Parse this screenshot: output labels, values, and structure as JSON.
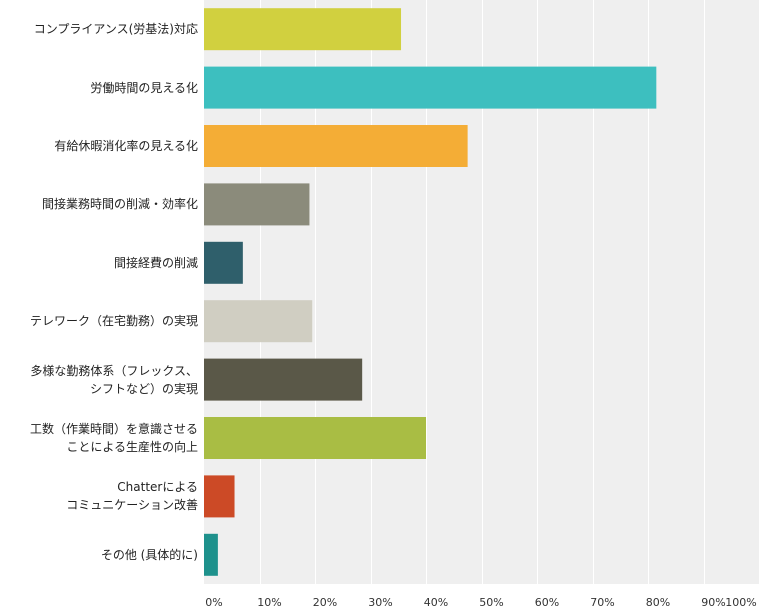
{
  "chart_data": {
    "type": "bar",
    "orientation": "horizontal",
    "categories": [
      [
        "コンプライアンス(労基法)対応"
      ],
      [
        "労働時間の見える化"
      ],
      [
        "有給休暇消化率の見える化"
      ],
      [
        "間接業務時間の削減・効率化"
      ],
      [
        "間接経費の削減"
      ],
      [
        "テレワーク（在宅勤務）の実現"
      ],
      [
        "多様な勤務体系（フレックス、",
        "シフトなど）の実現"
      ],
      [
        "工数（作業時間）を意識させる",
        "ことによる生産性の向上"
      ],
      [
        "Chatterによる",
        "コミュニケーション改善"
      ],
      [
        "その他 (具体的に)"
      ]
    ],
    "values": [
      35.5,
      81.5,
      47.5,
      19,
      7,
      19.5,
      28.5,
      40,
      5.5,
      2.5
    ],
    "colors": [
      "#d1d03f",
      "#3dbfbf",
      "#f4ad36",
      "#8b8b7b",
      "#2f5f6b",
      "#d0cec2",
      "#5a5848",
      "#a9bd44",
      "#cc4a26",
      "#1e918c"
    ],
    "xlim": [
      0,
      100
    ],
    "xticks": [
      "0%",
      "10%",
      "20%",
      "30%",
      "40%",
      "50%",
      "60%",
      "70%",
      "80%",
      "90%",
      "100%"
    ],
    "grid": true,
    "background": "#efefef"
  }
}
